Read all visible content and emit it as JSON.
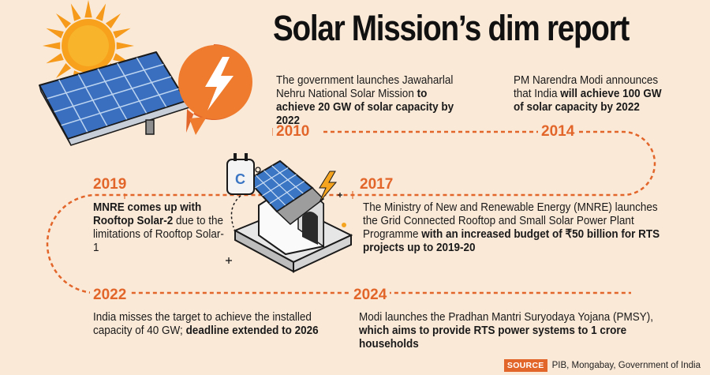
{
  "title": "Solar Mission’s dim report",
  "colors": {
    "accent": "#e2652a",
    "background": "#fbe9d7",
    "panel_blue": "#3a76c4"
  },
  "timeline": [
    {
      "year": "2010",
      "parts": [
        {
          "t": "The government launches Jawaharlal Nehru National Solar Mission ",
          "b": false
        },
        {
          "t": "to achieve 20 GW of solar capacity by 2022",
          "b": true
        }
      ]
    },
    {
      "year": "2014",
      "parts": [
        {
          "t": "PM Narendra Modi announces that India ",
          "b": false
        },
        {
          "t": "will achieve 100 GW of solar capacity by 2022",
          "b": true
        }
      ]
    },
    {
      "year": "2019",
      "parts": [
        {
          "t": "MNRE comes up with Rooftop Solar-2",
          "b": true
        },
        {
          "t": " due to the limitations of Rooftop Solar-1",
          "b": false
        }
      ]
    },
    {
      "year": "2017",
      "parts": [
        {
          "t": "The Ministry of New and Renewable Energy (MNRE) launches the Grid Connected Rooftop and Small Solar Power Plant Programme ",
          "b": false
        },
        {
          "t": "with an increased budget of ₹50 billion for RTS projects up to 2019-20",
          "b": true
        }
      ]
    },
    {
      "year": "2022",
      "parts": [
        {
          "t": "India misses the target to achieve the installed capacity of 40 GW; ",
          "b": false
        },
        {
          "t": "deadline extended to 2026",
          "b": true
        }
      ]
    },
    {
      "year": "2024",
      "parts": [
        {
          "t": "Modi launches the Pradhan Mantri Suryodaya Yojana (PMSY), ",
          "b": false
        },
        {
          "t": "which aims to provide RTS power systems to 1 crore households",
          "b": true
        }
      ]
    }
  ],
  "source": {
    "label": "SOURCE",
    "text": "PIB, Mongabay, Government of India"
  }
}
